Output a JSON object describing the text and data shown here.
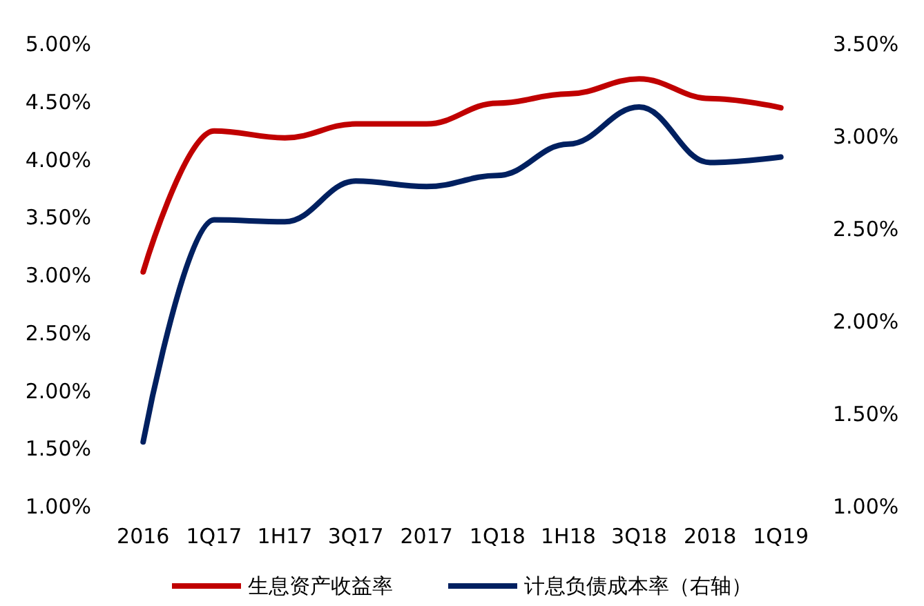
{
  "chart_data": {
    "type": "line",
    "categories": [
      "2016",
      "1Q17",
      "1H17",
      "3Q17",
      "2017",
      "1Q18",
      "1H18",
      "3Q18",
      "2018",
      "1Q19"
    ],
    "series": [
      {
        "name": "生息资产收益率",
        "color": "#c00000",
        "values": [
          3.03,
          4.25,
          4.19,
          4.31,
          4.31,
          4.49,
          4.57,
          4.7,
          4.53,
          4.45
        ]
      },
      {
        "name": "计息负债成本率（右轴）",
        "color": "#002060",
        "axis": "y2",
        "values": [
          1.35,
          2.55,
          2.54,
          2.76,
          2.73,
          2.79,
          2.96,
          3.16,
          2.86,
          2.89
        ]
      }
    ],
    "ylim": [
      1,
      5
    ],
    "yticks": [
      {
        "value": 1,
        "label": "1.00%"
      },
      {
        "value": 1.5,
        "label": "1.50%"
      },
      {
        "value": 2,
        "label": "2.00%"
      },
      {
        "value": 2.5,
        "label": "2.50%"
      },
      {
        "value": 3,
        "label": "3.00%"
      },
      {
        "value": 3.5,
        "label": "3.50%"
      },
      {
        "value": 4,
        "label": "4.00%"
      },
      {
        "value": 4.5,
        "label": "4.50%"
      },
      {
        "value": 5,
        "label": "5.00%"
      }
    ],
    "y2lim": [
      1,
      3.5
    ],
    "y2ticks": [
      {
        "value": 1,
        "label": "1.00%"
      },
      {
        "value": 1.5,
        "label": "1.50%"
      },
      {
        "value": 2,
        "label": "2.00%"
      },
      {
        "value": 2.5,
        "label": "2.50%"
      },
      {
        "value": 3,
        "label": "3.00%"
      },
      {
        "value": 3.5,
        "label": "3.50%"
      }
    ],
    "grid": false,
    "legend": "bottom",
    "marker": "none",
    "line_style": "solid"
  }
}
